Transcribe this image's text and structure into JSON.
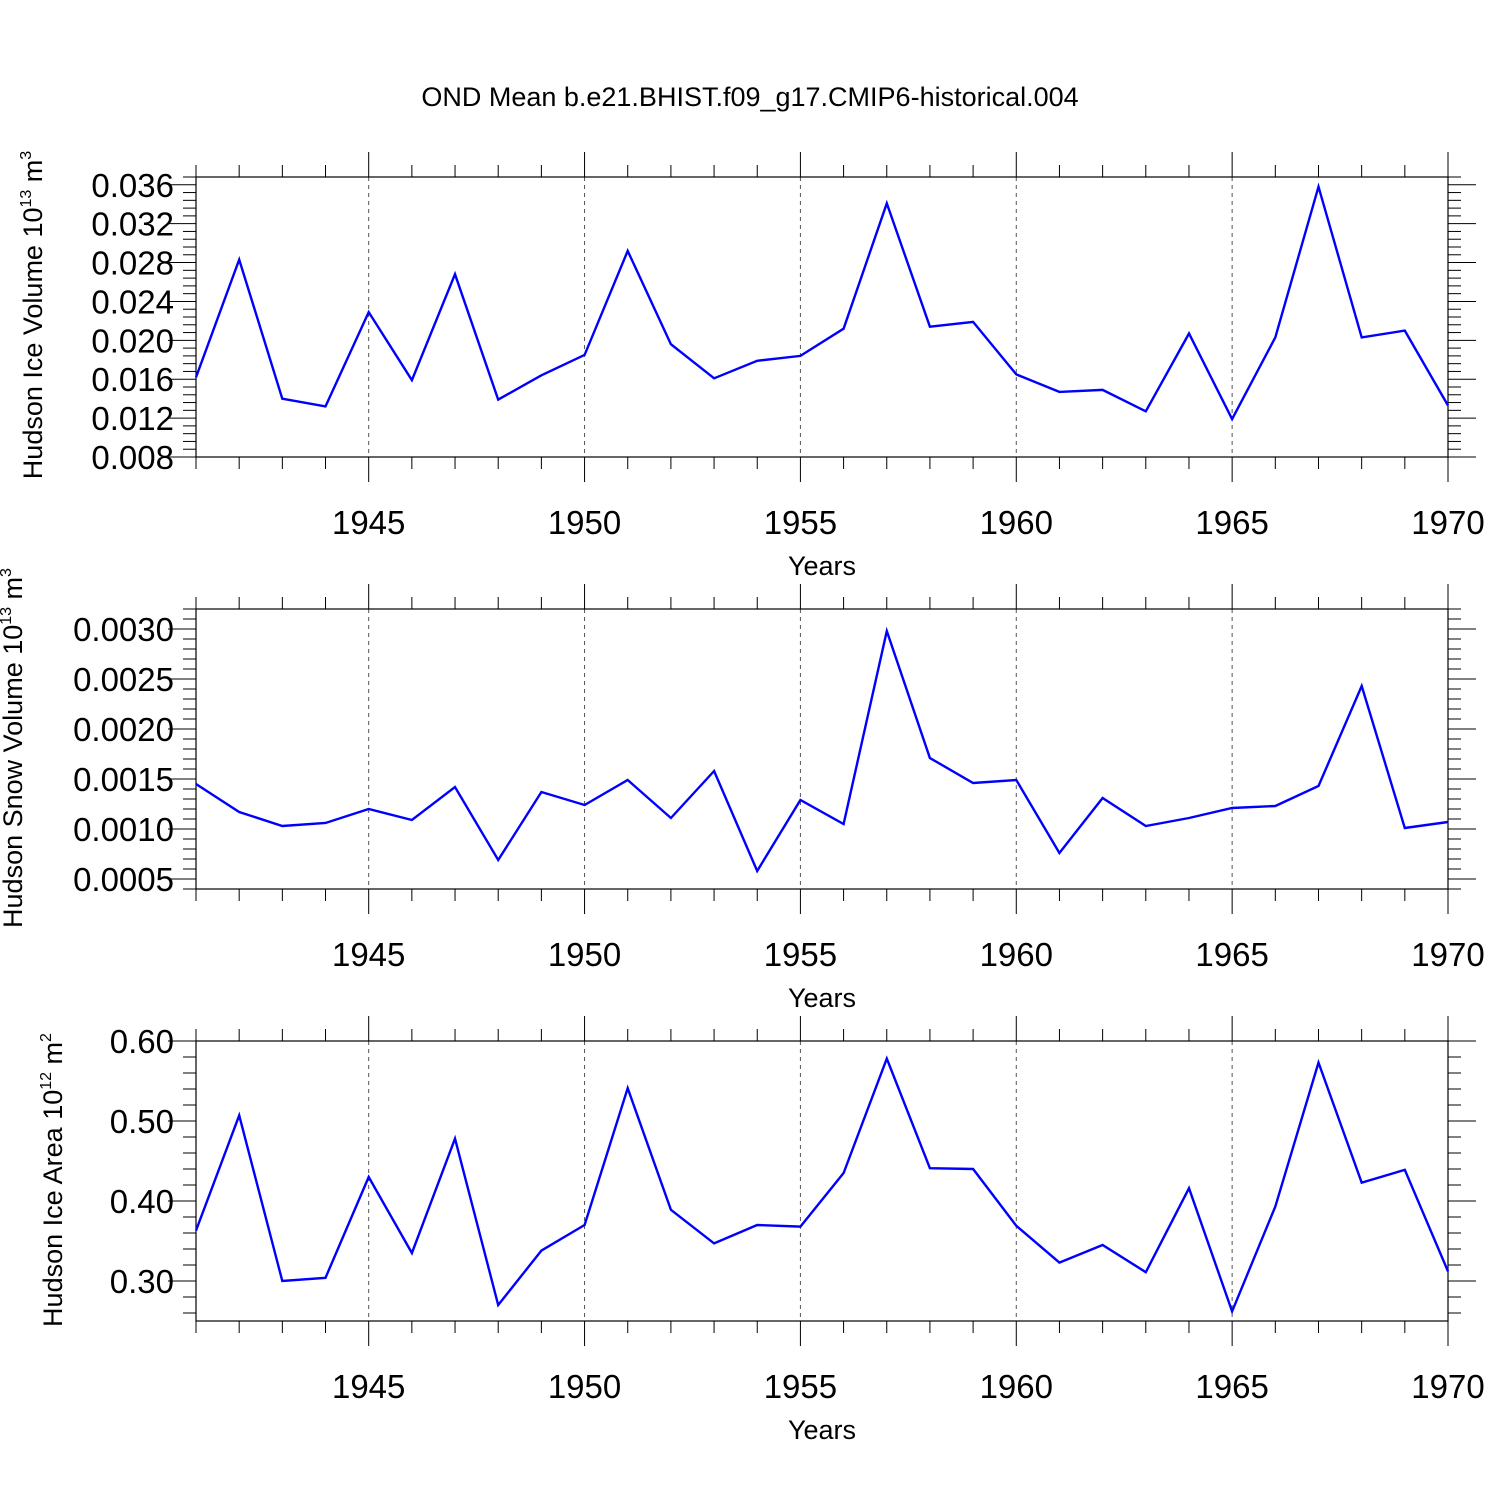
{
  "figure": {
    "title": "OND Mean b.e21.BHIST.f09_g17.CMIP6-historical.004",
    "line_color": "#0000ff"
  },
  "chart_data": [
    {
      "type": "line",
      "title": "",
      "xlabel": "Years",
      "ylabel": "Hudson Ice Volume 10",
      "ylabel_exp": "13",
      "ylabel_unit": " m",
      "ylabel_unit_exp": "3",
      "xlim": [
        1941,
        1970
      ],
      "ylim": [
        0.008,
        0.0368
      ],
      "yticks": [
        0.008,
        0.012,
        0.016,
        0.02,
        0.024,
        0.028,
        0.032,
        0.036
      ],
      "ytick_labels": [
        "0.008",
        "0.012",
        "0.016",
        "0.020",
        "0.024",
        "0.028",
        "0.032",
        "0.036"
      ],
      "xticks": [
        1945,
        1950,
        1955,
        1960,
        1965,
        1970
      ],
      "xtick_labels": [
        "1945",
        "1950",
        "1955",
        "1960",
        "1965",
        "1970"
      ],
      "grid": "vertical-dashed",
      "x": [
        1941,
        1942,
        1943,
        1944,
        1945,
        1946,
        1947,
        1948,
        1949,
        1950,
        1951,
        1952,
        1953,
        1954,
        1955,
        1956,
        1957,
        1958,
        1959,
        1960,
        1961,
        1962,
        1963,
        1964,
        1965,
        1966,
        1967,
        1968,
        1969,
        1970
      ],
      "series": [
        {
          "name": "Hudson Ice Volume",
          "values": [
            0.0162,
            0.0283,
            0.014,
            0.0132,
            0.0229,
            0.0159,
            0.0268,
            0.0139,
            0.0164,
            0.0185,
            0.0292,
            0.0196,
            0.0161,
            0.0179,
            0.0184,
            0.0212,
            0.0341,
            0.0214,
            0.0219,
            0.0165,
            0.0147,
            0.0149,
            0.0127,
            0.0207,
            0.0119,
            0.0203,
            0.0358,
            0.0203,
            0.021,
            0.0133
          ]
        }
      ]
    },
    {
      "type": "line",
      "title": "",
      "xlabel": "Years",
      "ylabel": "Hudson Snow Volume 10",
      "ylabel_exp": "13",
      "ylabel_unit": " m",
      "ylabel_unit_exp": "3",
      "xlim": [
        1941,
        1970
      ],
      "ylim": [
        0.0004,
        0.0032
      ],
      "yticks": [
        0.0005,
        0.001,
        0.0015,
        0.002,
        0.0025,
        0.003
      ],
      "ytick_labels": [
        "0.0005",
        "0.0010",
        "0.0015",
        "0.0020",
        "0.0025",
        "0.0030"
      ],
      "xticks": [
        1945,
        1950,
        1955,
        1960,
        1965,
        1970
      ],
      "xtick_labels": [
        "1945",
        "1950",
        "1955",
        "1960",
        "1965",
        "1970"
      ],
      "grid": "vertical-dashed",
      "x": [
        1941,
        1942,
        1943,
        1944,
        1945,
        1946,
        1947,
        1948,
        1949,
        1950,
        1951,
        1952,
        1953,
        1954,
        1955,
        1956,
        1957,
        1958,
        1959,
        1960,
        1961,
        1962,
        1963,
        1964,
        1965,
        1966,
        1967,
        1968,
        1969,
        1970
      ],
      "series": [
        {
          "name": "Hudson Snow Volume",
          "values": [
            0.00145,
            0.00117,
            0.00103,
            0.00106,
            0.0012,
            0.00109,
            0.00142,
            0.00069,
            0.00137,
            0.00124,
            0.00149,
            0.00111,
            0.00158,
            0.00058,
            0.00129,
            0.00105,
            0.00298,
            0.00171,
            0.00146,
            0.00149,
            0.00076,
            0.00131,
            0.00103,
            0.00111,
            0.00121,
            0.00123,
            0.00143,
            0.00243,
            0.00101,
            0.00107
          ]
        }
      ]
    },
    {
      "type": "line",
      "title": "",
      "xlabel": "Years",
      "ylabel": "Hudson Ice Area 10",
      "ylabel_exp": "12",
      "ylabel_unit": " m",
      "ylabel_unit_exp": "2",
      "xlim": [
        1941,
        1970
      ],
      "ylim": [
        0.25,
        0.6
      ],
      "yticks": [
        0.3,
        0.4,
        0.5,
        0.6
      ],
      "ytick_labels": [
        "0.30",
        "0.40",
        "0.50",
        "0.60"
      ],
      "xticks": [
        1945,
        1950,
        1955,
        1960,
        1965,
        1970
      ],
      "xtick_labels": [
        "1945",
        "1950",
        "1955",
        "1960",
        "1965",
        "1970"
      ],
      "grid": "vertical-dashed",
      "x": [
        1941,
        1942,
        1943,
        1944,
        1945,
        1946,
        1947,
        1948,
        1949,
        1950,
        1951,
        1952,
        1953,
        1954,
        1955,
        1956,
        1957,
        1958,
        1959,
        1960,
        1961,
        1962,
        1963,
        1964,
        1965,
        1966,
        1967,
        1968,
        1969,
        1970
      ],
      "series": [
        {
          "name": "Hudson Ice Area",
          "values": [
            0.363,
            0.507,
            0.3,
            0.304,
            0.43,
            0.335,
            0.478,
            0.27,
            0.338,
            0.37,
            0.541,
            0.389,
            0.347,
            0.37,
            0.368,
            0.435,
            0.578,
            0.441,
            0.44,
            0.369,
            0.323,
            0.345,
            0.311,
            0.416,
            0.262,
            0.393,
            0.573,
            0.423,
            0.439,
            0.312
          ]
        }
      ]
    }
  ]
}
